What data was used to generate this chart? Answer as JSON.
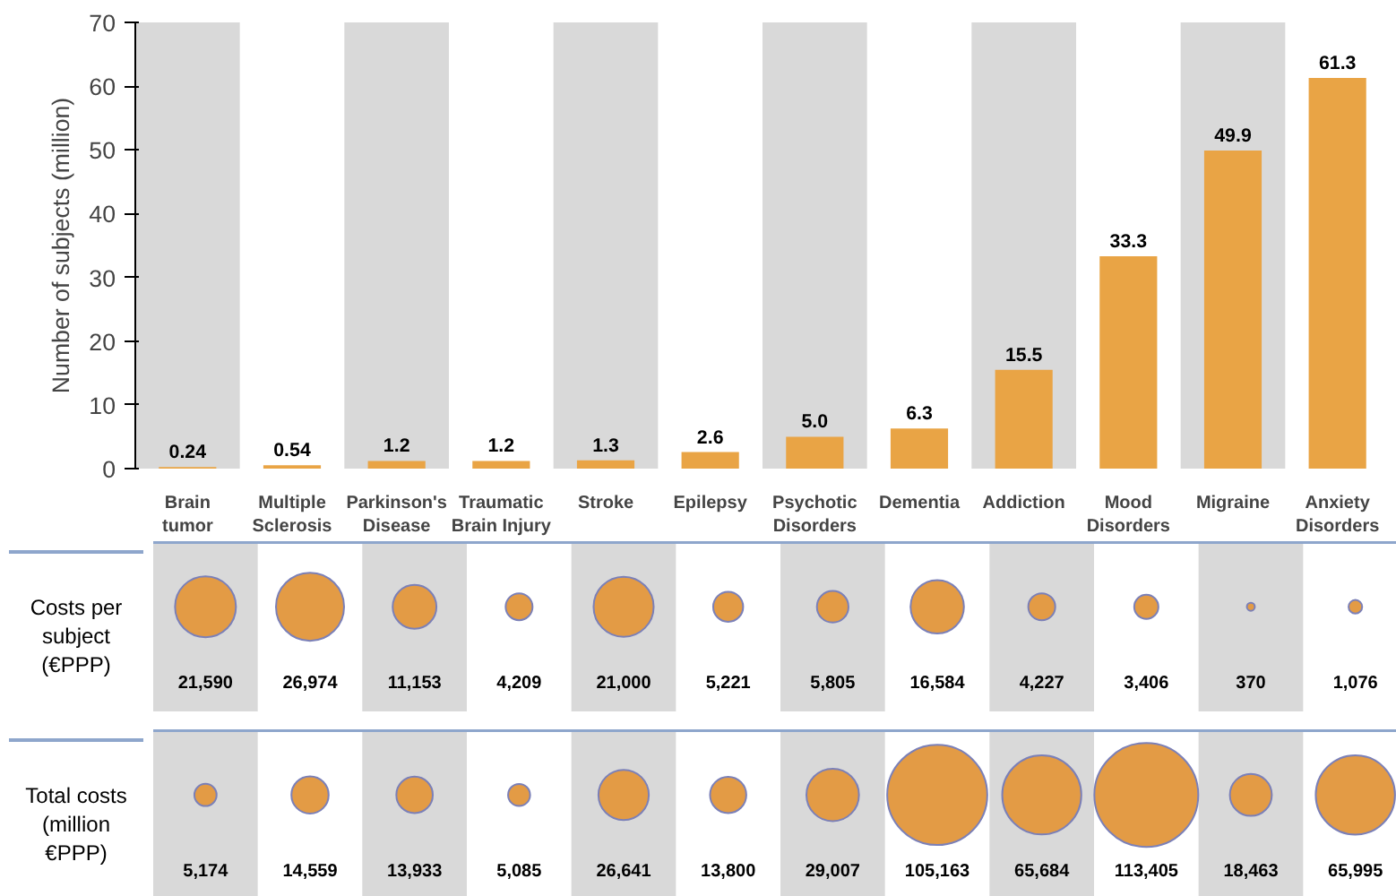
{
  "chart_data": [
    {
      "type": "bar",
      "ylabel": "Number of subjects (million)",
      "categories": [
        "Brain tumor",
        "Multiple Sclerosis",
        "Parkinson's Disease",
        "Traumatic Brain Injury",
        "Stroke",
        "Epilepsy",
        "Psychotic Disorders",
        "Dementia",
        "Addiction",
        "Mood Disorders",
        "Migraine",
        "Anxiety Disorders"
      ],
      "values": [
        0.24,
        0.54,
        1.2,
        1.2,
        1.3,
        2.6,
        5.0,
        6.3,
        15.5,
        33.3,
        49.9,
        61.3
      ],
      "value_labels": [
        "0.24",
        "0.54",
        "1.2",
        "1.2",
        "1.3",
        "2.6",
        "5.0",
        "6.3",
        "15.5",
        "33.3",
        "49.9",
        "61.3"
      ],
      "color": "#e9a445",
      "ylim": [
        0,
        70
      ],
      "yticks": [
        0,
        10,
        20,
        30,
        40,
        50,
        60,
        70
      ],
      "bands": [
        {
          "axis": "x",
          "from": "Brain tumor",
          "to": "Brain tumor",
          "color": "#d9d9d9"
        },
        {
          "axis": "x",
          "from": "Parkinson's Disease",
          "to": "Parkinson's Disease",
          "color": "#d9d9d9"
        },
        {
          "axis": "x",
          "from": "Stroke",
          "to": "Stroke",
          "color": "#d9d9d9"
        },
        {
          "axis": "x",
          "from": "Psychotic Disorders",
          "to": "Psychotic Disorders",
          "color": "#d9d9d9"
        },
        {
          "axis": "x",
          "from": "Addiction",
          "to": "Addiction",
          "color": "#d9d9d9"
        },
        {
          "axis": "x",
          "from": "Migraine",
          "to": "Migraine",
          "color": "#d9d9d9"
        }
      ]
    },
    {
      "type": "other",
      "ylabel": "Costs per subject (€PPP)",
      "categories": [
        null,
        null,
        null,
        null,
        null,
        null,
        null,
        null,
        null,
        null,
        null,
        null
      ],
      "values": [
        21590,
        26974,
        11153,
        4209,
        21000,
        5221,
        5805,
        16584,
        4227,
        3406,
        370,
        1076
      ],
      "value_labels": [
        "21,590",
        "26,974",
        "11,153",
        "4,209",
        "21,000",
        "5,221",
        "5,805",
        "16,584",
        "4,227",
        "3,406",
        "370",
        "1,076"
      ],
      "color": "#e39b45"
    },
    {
      "type": "other",
      "ylabel": "Total costs (million €PPP)",
      "categories": [
        null,
        null,
        null,
        null,
        null,
        null,
        null,
        null,
        null,
        null,
        null,
        null
      ],
      "values": [
        5174,
        14559,
        13933,
        5085,
        26641,
        13800,
        29007,
        105163,
        65684,
        113405,
        18463,
        65995
      ],
      "value_labels": [
        "5,174",
        "14,559",
        "13,933",
        "5,085",
        "26,641",
        "13,800",
        "29,007",
        "105,163",
        "65,684",
        "113,405",
        "18,463",
        "65,995"
      ],
      "color": "#e39b45"
    }
  ]
}
